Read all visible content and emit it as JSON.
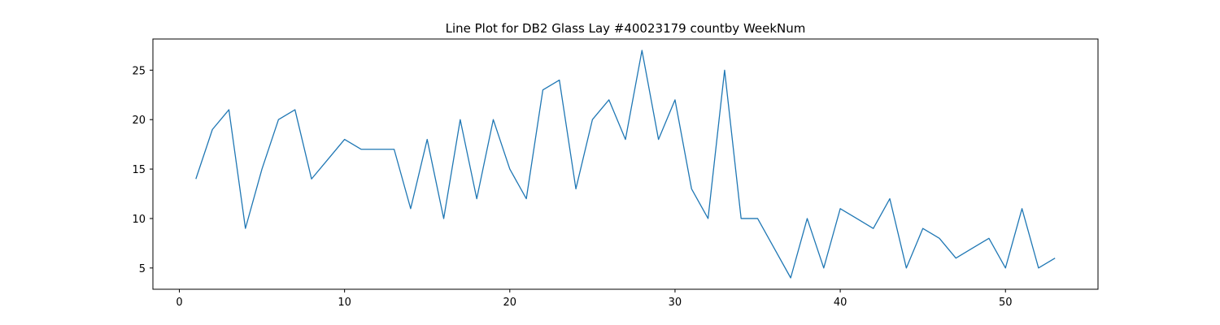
{
  "chart_data": {
    "type": "line",
    "title": "Line Plot for DB2 Glass Lay #40023179 countby WeekNum",
    "xlabel": "",
    "ylabel": "",
    "xlim": [
      -1.6,
      55.6
    ],
    "ylim": [
      2.85,
      28.15
    ],
    "xticks": [
      0,
      10,
      20,
      30,
      40,
      50
    ],
    "yticks": [
      5,
      10,
      15,
      20,
      25
    ],
    "grid": false,
    "series": [
      {
        "color": "#1f77b4",
        "x": [
          1,
          2,
          3,
          4,
          5,
          6,
          7,
          8,
          9,
          10,
          11,
          12,
          13,
          14,
          15,
          16,
          17,
          18,
          19,
          20,
          21,
          22,
          23,
          24,
          25,
          26,
          27,
          28,
          29,
          30,
          31,
          32,
          33,
          34,
          35,
          36,
          37,
          38,
          39,
          40,
          41,
          42,
          43,
          44,
          45,
          46,
          47,
          48,
          49,
          50,
          51,
          52,
          53
        ],
        "y": [
          14,
          19,
          21,
          9,
          15,
          20,
          21,
          14,
          16,
          18,
          17,
          17,
          17,
          11,
          18,
          10,
          20,
          12,
          20,
          15,
          12,
          23,
          24,
          13,
          20,
          22,
          18,
          27,
          18,
          22,
          13,
          10,
          25,
          10,
          10,
          7,
          4,
          10,
          5,
          11,
          10,
          9,
          12,
          5,
          9,
          8,
          6,
          7,
          8,
          5,
          11,
          5,
          6
        ]
      }
    ]
  }
}
